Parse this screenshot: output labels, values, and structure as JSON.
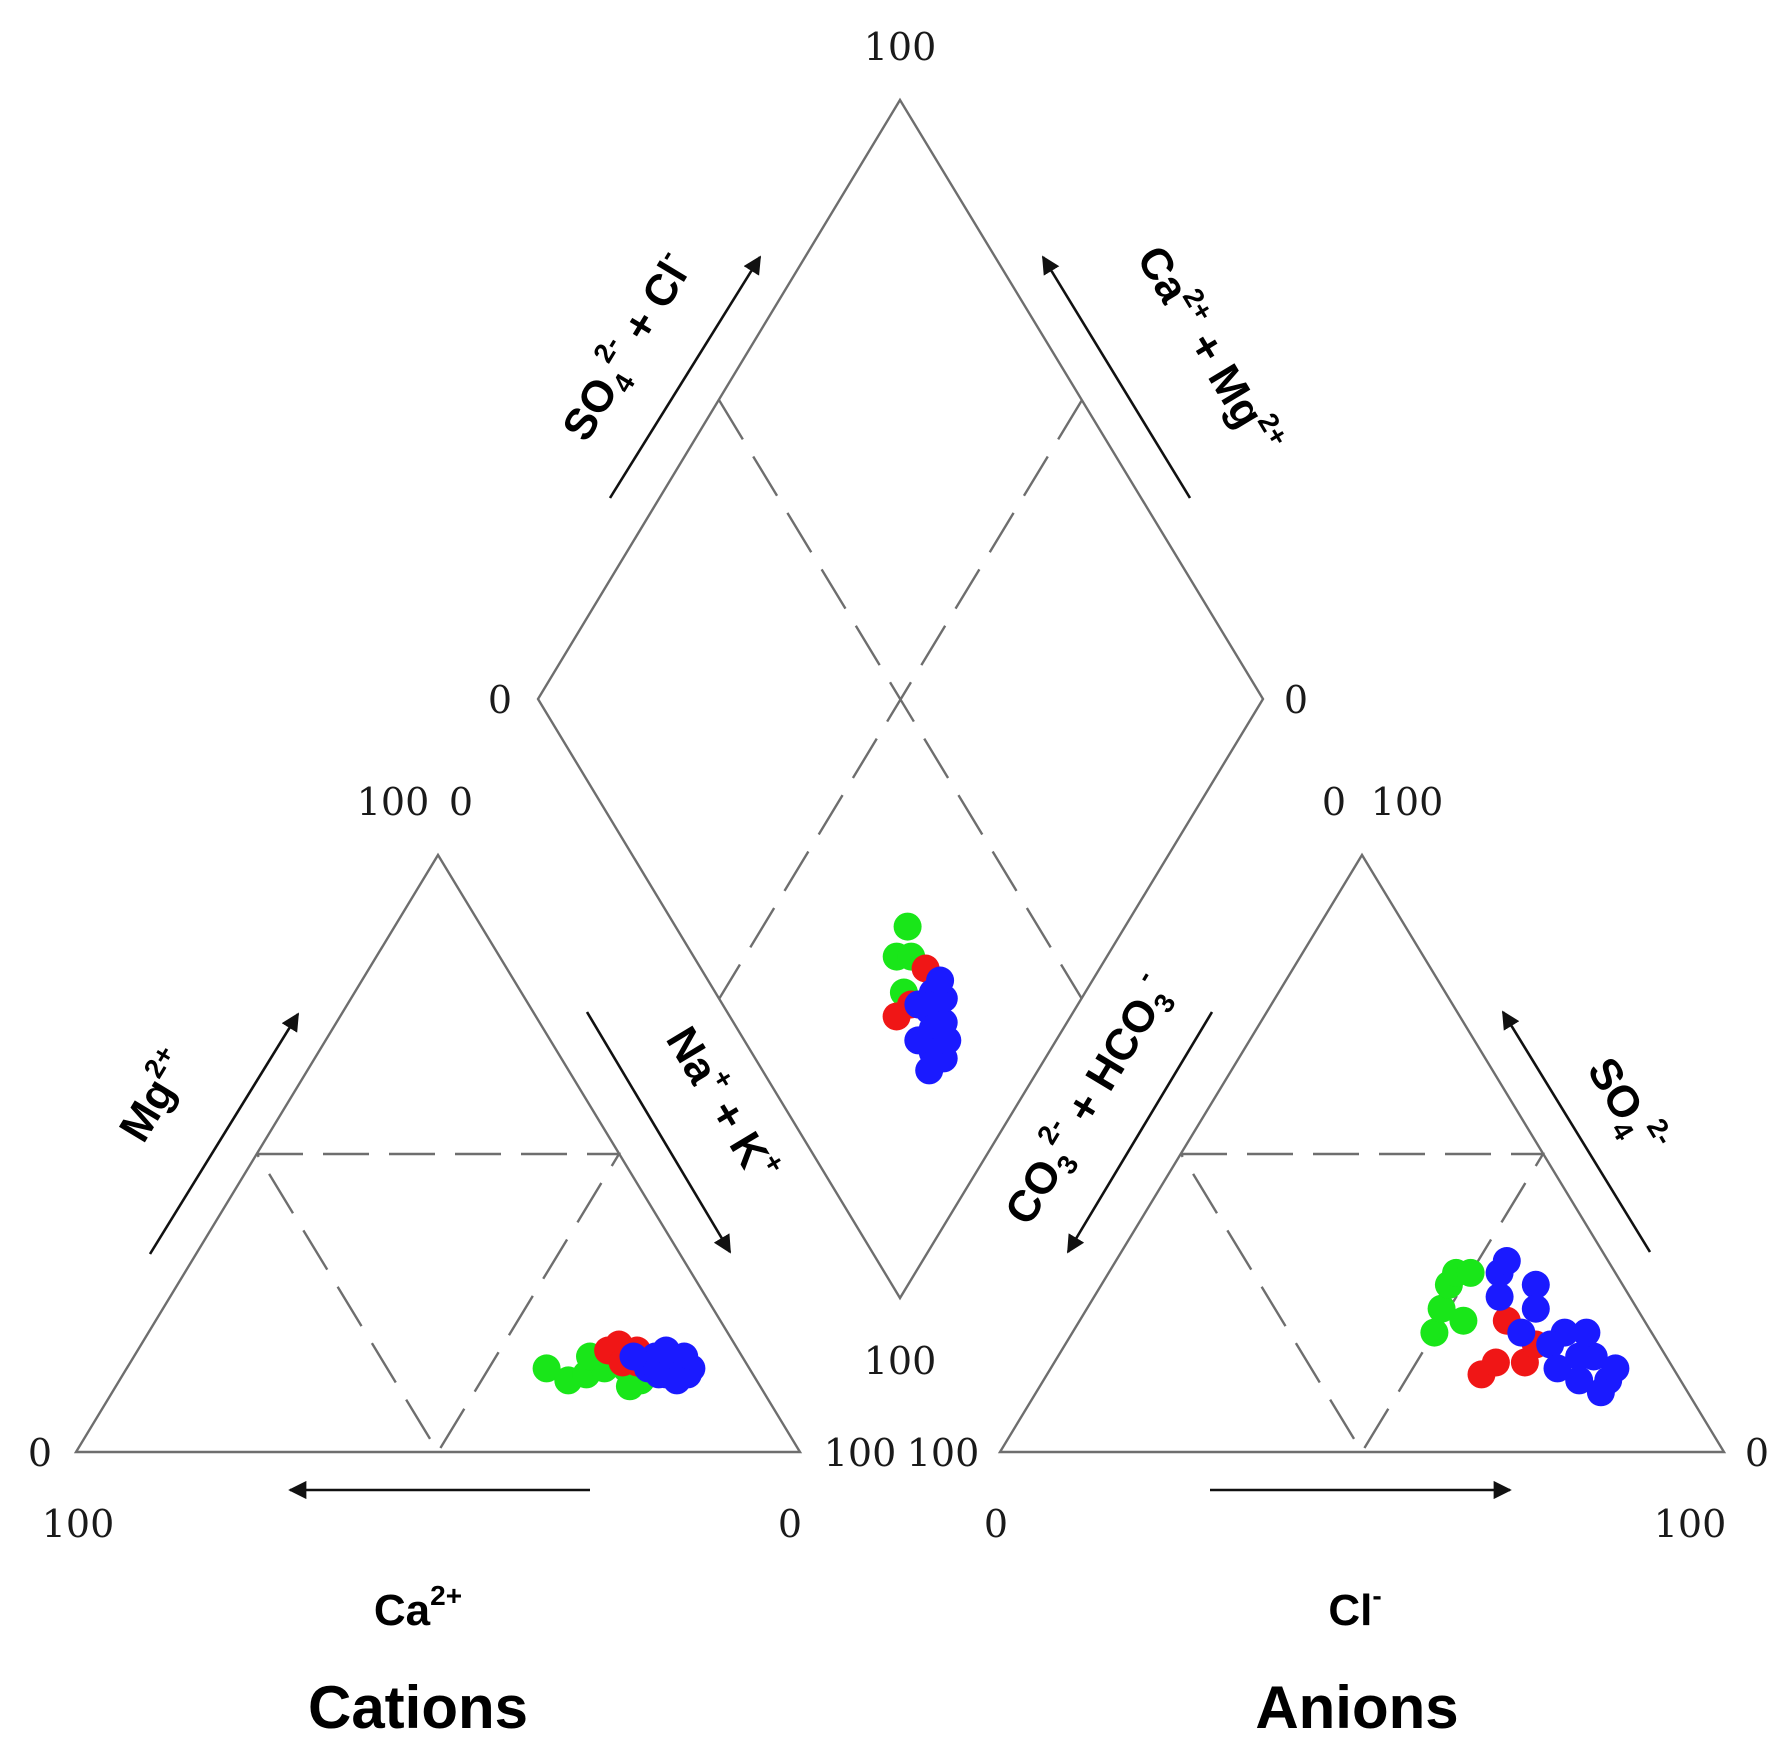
{
  "colors": {
    "frame": "#6e6e6e",
    "arrow": "#111111",
    "series_green": "#19e619",
    "series_red": "#f01616",
    "series_blue": "#1a1aff"
  },
  "ticks": {
    "diamond_top": "100",
    "diamond_left": "0",
    "diamond_right": "0",
    "diamond_bottom": "100",
    "cation_apex_left": "100",
    "cation_apex_right": "0",
    "cation_bl_side": "0",
    "cation_bl_bottom": "100",
    "cation_br_side": "100",
    "cation_br_bottom": "0",
    "anion_apex_left": "0",
    "anion_apex_right": "100",
    "anion_bl_side": "100",
    "anion_bl_bottom": "0",
    "anion_br_side": "0",
    "anion_br_bottom": "100"
  },
  "labels": {
    "diamond_left_axis": {
      "base": "SO",
      "sub": "4",
      "sup": "2-",
      "rest": " + Cl",
      "rest_sup": "-"
    },
    "diamond_right_axis": {
      "base": "Ca",
      "sup1": "2+",
      "mid": " + Mg",
      "sup2": "2+"
    },
    "cation_left_axis": {
      "base": "Mg",
      "sup": "2+"
    },
    "cation_right_axis": {
      "base": "Na",
      "sup1": "+",
      "mid": " + K",
      "sup2": "+"
    },
    "cation_bottom_axis": {
      "base": "Ca",
      "sup": "2+"
    },
    "anion_left_axis": {
      "base": "CO",
      "sub1": "3",
      "sup1": "2-",
      "mid": " + HCO",
      "sub2": "3",
      "sup2": "-"
    },
    "anion_right_axis": {
      "base": "SO",
      "sub": "4",
      "sup": "2-"
    },
    "anion_bottom_axis": {
      "base": "Cl",
      "sup": "-"
    },
    "cations_title": "Cations",
    "anions_title": "Anions"
  },
  "chart_data": {
    "type": "scatter",
    "description_type": "piper",
    "series": [
      {
        "color": "#19e619",
        "cation_points": [
          {
            "ca": 28,
            "mg": 14,
            "na_k": 58
          },
          {
            "ca": 26,
            "mg": 12,
            "na_k": 62
          },
          {
            "ca": 23,
            "mg": 13,
            "na_k": 64
          },
          {
            "ca": 20,
            "mg": 14,
            "na_k": 66
          },
          {
            "ca": 17,
            "mg": 14,
            "na_k": 69
          },
          {
            "ca": 16,
            "mg": 12,
            "na_k": 72
          },
          {
            "ca": 21,
            "mg": 16,
            "na_k": 63
          },
          {
            "ca": 18,
            "mg": 11,
            "na_k": 71
          }
        ],
        "anion_points": [
          {
            "co3_hco3": 30,
            "so4": 20,
            "cl": 50
          },
          {
            "co3_hco3": 27,
            "so4": 24,
            "cl": 49
          },
          {
            "co3_hco3": 24,
            "so4": 28,
            "cl": 48
          },
          {
            "co3_hco3": 22,
            "so4": 30,
            "cl": 48
          },
          {
            "co3_hco3": 25,
            "so4": 22,
            "cl": 53
          },
          {
            "co3_hco3": 20,
            "so4": 30,
            "cl": 50
          }
        ],
        "diamond_points": [
          {
            "so4_cl": 32,
            "ca_mg": 30
          },
          {
            "so4_cl": 26,
            "ca_mg": 25
          },
          {
            "so4_cl": 28,
            "ca_mg": 29
          },
          {
            "so4_cl": 30,
            "ca_mg": 27
          }
        ]
      },
      {
        "color": "#f01616",
        "cation_points": [
          {
            "ca": 18,
            "mg": 17,
            "na_k": 65
          },
          {
            "ca": 16,
            "mg": 18,
            "na_k": 66
          },
          {
            "ca": 15,
            "mg": 15,
            "na_k": 70
          },
          {
            "ca": 17,
            "mg": 15,
            "na_k": 68
          },
          {
            "ca": 14,
            "mg": 17,
            "na_k": 69
          },
          {
            "ca": 13,
            "mg": 14,
            "na_k": 73
          }
        ],
        "anion_points": [
          {
            "co3_hco3": 27,
            "so4": 13,
            "cl": 60
          },
          {
            "co3_hco3": 24,
            "so4": 15,
            "cl": 61
          },
          {
            "co3_hco3": 20,
            "so4": 15,
            "cl": 65
          },
          {
            "co3_hco3": 17,
            "so4": 18,
            "cl": 65
          },
          {
            "co3_hco3": 19,
            "so4": 22,
            "cl": 59
          }
        ],
        "diamond_points": [
          {
            "so4_cl": 26,
            "ca_mg": 23
          },
          {
            "so4_cl": 25,
            "ca_mg": 18
          },
          {
            "so4_cl": 23,
            "ca_mg": 24
          },
          {
            "so4_cl": 27,
            "ca_mg": 22
          },
          {
            "so4_cl": 31,
            "ca_mg": 24
          }
        ]
      },
      {
        "color": "#1a1aff",
        "cation_points": [
          {
            "ca": 14,
            "mg": 14,
            "na_k": 72
          },
          {
            "ca": 13,
            "mg": 15,
            "na_k": 72
          },
          {
            "ca": 12,
            "mg": 13,
            "na_k": 75
          },
          {
            "ca": 11,
            "mg": 15,
            "na_k": 74
          },
          {
            "ca": 10,
            "mg": 14,
            "na_k": 76
          },
          {
            "ca": 9,
            "mg": 15,
            "na_k": 76
          },
          {
            "ca": 9,
            "mg": 13,
            "na_k": 78
          },
          {
            "ca": 8,
            "mg": 14,
            "na_k": 78
          },
          {
            "ca": 8,
            "mg": 16,
            "na_k": 76
          },
          {
            "ca": 12,
            "mg": 16,
            "na_k": 72
          },
          {
            "ca": 13,
            "mg": 13,
            "na_k": 74
          },
          {
            "ca": 11,
            "mg": 12,
            "na_k": 77
          },
          {
            "ca": 15,
            "mg": 16,
            "na_k": 69
          },
          {
            "ca": 10,
            "mg": 17,
            "na_k": 73
          }
        ],
        "anion_points": [
          {
            "co3_hco3": 18,
            "so4": 26,
            "cl": 56
          },
          {
            "co3_hco3": 16,
            "so4": 30,
            "cl": 54
          },
          {
            "co3_hco3": 14,
            "so4": 32,
            "cl": 54
          },
          {
            "co3_hco3": 12,
            "so4": 28,
            "cl": 60
          },
          {
            "co3_hco3": 14,
            "so4": 24,
            "cl": 62
          },
          {
            "co3_hco3": 12,
            "so4": 20,
            "cl": 68
          },
          {
            "co3_hco3": 10,
            "so4": 16,
            "cl": 74
          },
          {
            "co3_hco3": 10,
            "so4": 12,
            "cl": 78
          },
          {
            "co3_hco3": 12,
            "so4": 10,
            "cl": 78
          },
          {
            "co3_hco3": 14,
            "so4": 12,
            "cl": 74
          },
          {
            "co3_hco3": 12,
            "so4": 16,
            "cl": 72
          },
          {
            "co3_hco3": 15,
            "so4": 18,
            "cl": 67
          },
          {
            "co3_hco3": 16,
            "so4": 14,
            "cl": 70
          },
          {
            "co3_hco3": 8,
            "so4": 14,
            "cl": 78
          },
          {
            "co3_hco3": 9,
            "so4": 20,
            "cl": 71
          },
          {
            "co3_hco3": 18,
            "so4": 20,
            "cl": 62
          }
        ],
        "diamond_points": [
          {
            "so4_cl": 30,
            "ca_mg": 21
          },
          {
            "so4_cl": 28,
            "ca_mg": 20
          },
          {
            "so4_cl": 27,
            "ca_mg": 18
          },
          {
            "so4_cl": 25,
            "ca_mg": 16
          },
          {
            "so4_cl": 26,
            "ca_mg": 14
          },
          {
            "so4_cl": 29,
            "ca_mg": 17
          },
          {
            "so4_cl": 31,
            "ca_mg": 19
          },
          {
            "so4_cl": 24,
            "ca_mg": 19
          },
          {
            "so4_cl": 28,
            "ca_mg": 15
          },
          {
            "so4_cl": 23,
            "ca_mg": 15
          },
          {
            "so4_cl": 32,
            "ca_mg": 21
          },
          {
            "so4_cl": 27,
            "ca_mg": 22
          }
        ]
      }
    ]
  }
}
